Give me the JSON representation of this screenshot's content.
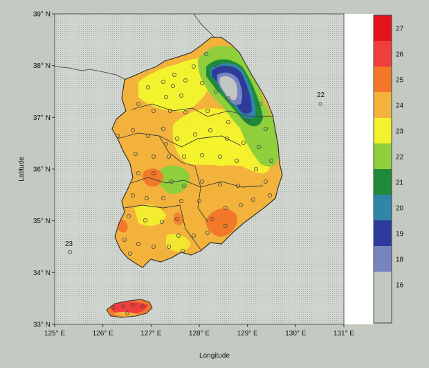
{
  "map": {
    "xlabel": "Longitude",
    "ylabel": "Latitude",
    "lon_ticks": [
      {
        "value": 125,
        "label": "125° E"
      },
      {
        "value": 126,
        "label": "126° E"
      },
      {
        "value": 127,
        "label": "127° E"
      },
      {
        "value": 128,
        "label": "128° E"
      },
      {
        "value": 129,
        "label": "129° E"
      },
      {
        "value": 130,
        "label": "130° E"
      },
      {
        "value": 131,
        "label": "131° E"
      }
    ],
    "lat_ticks": [
      {
        "value": 33,
        "label": "33° N"
      },
      {
        "value": 34,
        "label": "34° N"
      },
      {
        "value": 35,
        "label": "35° N"
      },
      {
        "value": 36,
        "label": "36° N"
      },
      {
        "value": 37,
        "label": "37° N"
      },
      {
        "value": 38,
        "label": "38° N"
      },
      {
        "value": 39,
        "label": "39° N"
      }
    ],
    "lon_range": [
      125,
      131
    ],
    "lat_range": [
      33,
      39
    ],
    "station_labels": [
      {
        "name": "22",
        "lon": 130.5,
        "lat": 37.3
      },
      {
        "name": "23",
        "lon": 125.2,
        "lat": 34.4
      }
    ]
  },
  "colorbar": {
    "levels": [
      {
        "label": "",
        "color": "#c2c7c2"
      },
      {
        "label": "16",
        "color": "#c2c7c2"
      },
      {
        "label": "18",
        "color": "#7884be"
      },
      {
        "label": "19",
        "color": "#2e3a9c"
      },
      {
        "label": "20",
        "color": "#2f86a6"
      },
      {
        "label": "21",
        "color": "#1f8a3a"
      },
      {
        "label": "22",
        "color": "#8fcf3c"
      },
      {
        "label": "23",
        "color": "#f3f22e"
      },
      {
        "label": "24",
        "color": "#f2b23c"
      },
      {
        "label": "25",
        "color": "#f2782a"
      },
      {
        "label": "26",
        "color": "#ef3e3c"
      },
      {
        "label": "27",
        "color": "#e4141c"
      }
    ]
  },
  "colors": {
    "sea": "#cfd3cd",
    "frame": "#ffffff",
    "land_base": "#f4bf3f"
  }
}
